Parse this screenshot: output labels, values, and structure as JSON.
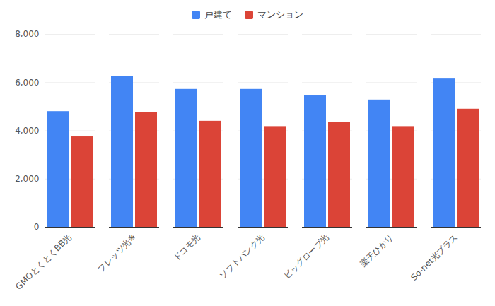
{
  "chart_data": {
    "type": "bar",
    "categories": [
      "GMOとくとくBB光",
      "フレッツ光※",
      "ドコモ光",
      "ソフトバンク光",
      "ビッグローブ光",
      "楽天ひかり",
      "So-net光プラス"
    ],
    "series": [
      {
        "name": "戸建て",
        "color": "#4285f4",
        "values": [
          4800,
          6250,
          5720,
          5720,
          5450,
          5280,
          6150
        ]
      },
      {
        "name": "マンション",
        "color": "#db4437",
        "values": [
          3750,
          4750,
          4400,
          4150,
          4350,
          4150,
          4900
        ]
      }
    ],
    "ylim": [
      0,
      8000
    ],
    "yticks": [
      0,
      {
        "value": 2000,
        "label": "2,000"
      },
      {
        "value": 4000,
        "label": "4,000"
      },
      {
        "value": 6000,
        "label": "6,000"
      },
      {
        "value": 8000,
        "label": "8,000"
      }
    ],
    "grid": true,
    "legend": "top"
  }
}
